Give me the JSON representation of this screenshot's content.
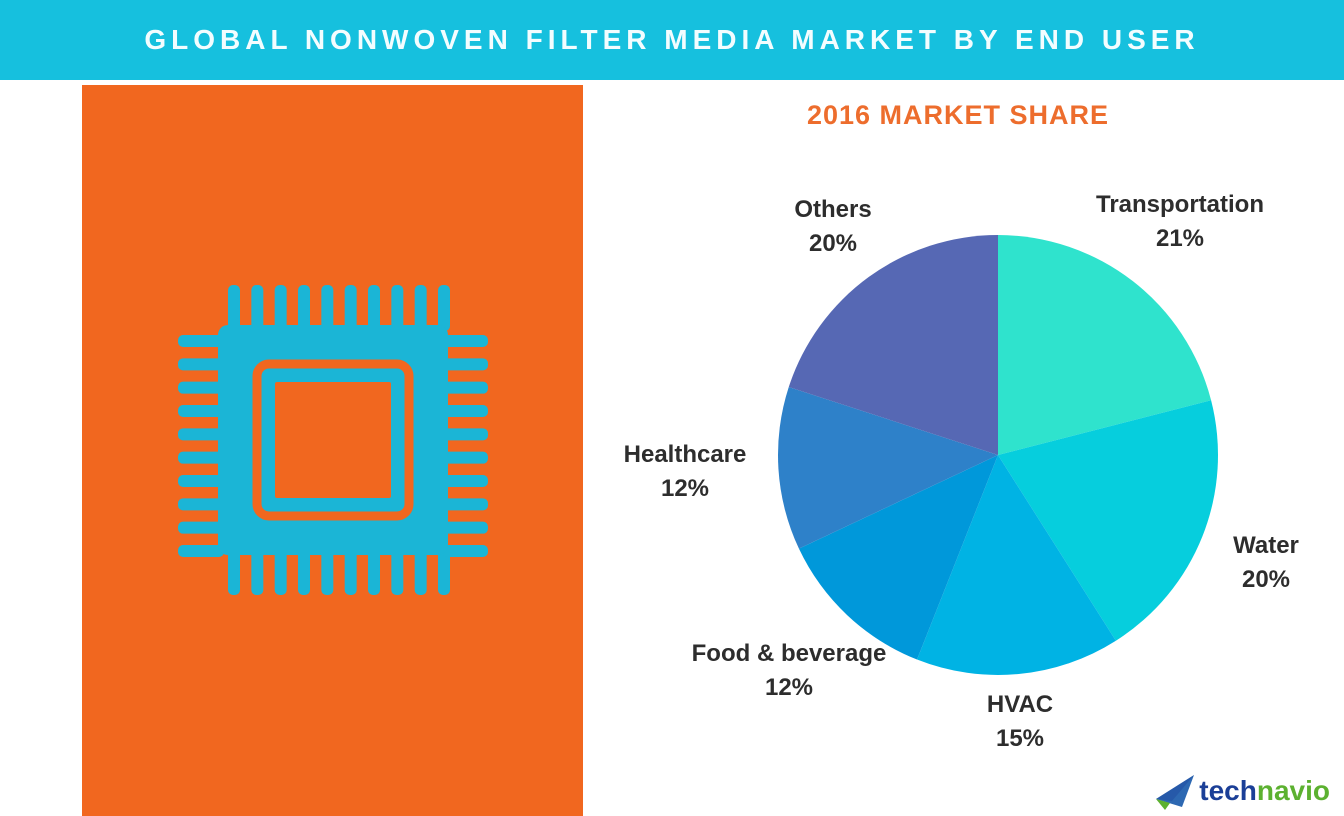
{
  "header": {
    "title": "GLOBAL NONWOVEN FILTER MEDIA MARKET BY END USER",
    "background_color": "#16c0de",
    "text_color": "#ffffff"
  },
  "left_panel": {
    "background_color": "#f1671f",
    "icon": "microchip-icon",
    "icon_color": "#1bb5d6"
  },
  "chart_data": {
    "type": "pie",
    "title": "2016 MARKET SHARE",
    "title_color": "#ed6d2d",
    "units": "%",
    "start_angle_deg": 0,
    "direction": "clockwise",
    "legend_position": "labels-around-pie",
    "slices": [
      {
        "label": "Transportation",
        "value": 21,
        "pct_label": "21%",
        "color": "#2fe3cd"
      },
      {
        "label": "Water",
        "value": 20,
        "pct_label": "20%",
        "color": "#06cedd"
      },
      {
        "label": "HVAC",
        "value": 15,
        "pct_label": "15%",
        "color": "#00b3e4"
      },
      {
        "label": "Food & beverage",
        "value": 12,
        "pct_label": "12%",
        "color": "#0098da"
      },
      {
        "label": "Healthcare",
        "value": 12,
        "pct_label": "12%",
        "color": "#2e81c9"
      },
      {
        "label": "Others",
        "value": 20,
        "pct_label": "20%",
        "color": "#5668b4"
      }
    ]
  },
  "logo": {
    "text_tech": "tech",
    "text_navio": "navio",
    "tech_color": "#1b3f97",
    "navio_color": "#5cb130"
  }
}
